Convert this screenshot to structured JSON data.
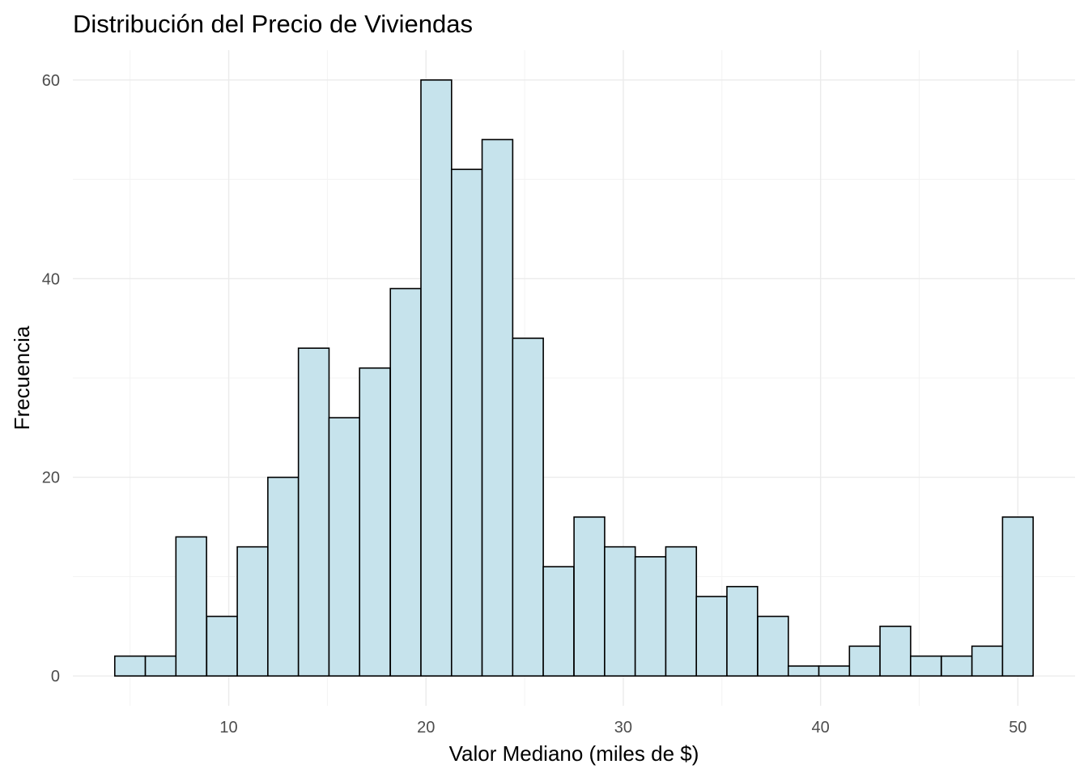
{
  "chart_data": {
    "type": "bar",
    "title": "Distribución del Precio de Viviendas",
    "xlabel": "Valor Mediano (miles de $)",
    "ylabel": "Frecuencia",
    "bin_width": 1.5517,
    "bins": [
      {
        "x": 5.0,
        "count": 2
      },
      {
        "x": 6.55,
        "count": 2
      },
      {
        "x": 8.1,
        "count": 14
      },
      {
        "x": 9.66,
        "count": 6
      },
      {
        "x": 11.21,
        "count": 13
      },
      {
        "x": 12.76,
        "count": 20
      },
      {
        "x": 14.31,
        "count": 33
      },
      {
        "x": 15.86,
        "count": 26
      },
      {
        "x": 17.41,
        "count": 31
      },
      {
        "x": 18.97,
        "count": 39
      },
      {
        "x": 20.52,
        "count": 60
      },
      {
        "x": 22.07,
        "count": 51
      },
      {
        "x": 23.62,
        "count": 54
      },
      {
        "x": 25.17,
        "count": 34
      },
      {
        "x": 26.72,
        "count": 11
      },
      {
        "x": 28.28,
        "count": 16
      },
      {
        "x": 29.83,
        "count": 13
      },
      {
        "x": 31.38,
        "count": 12
      },
      {
        "x": 32.93,
        "count": 13
      },
      {
        "x": 34.48,
        "count": 8
      },
      {
        "x": 36.03,
        "count": 9
      },
      {
        "x": 37.59,
        "count": 6
      },
      {
        "x": 39.14,
        "count": 1
      },
      {
        "x": 40.69,
        "count": 1
      },
      {
        "x": 42.24,
        "count": 3
      },
      {
        "x": 43.79,
        "count": 5
      },
      {
        "x": 45.34,
        "count": 2
      },
      {
        "x": 46.9,
        "count": 2
      },
      {
        "x": 48.45,
        "count": 3
      },
      {
        "x": 50.0,
        "count": 16
      }
    ],
    "xlim": [
      2.1,
      52.9
    ],
    "ylim": [
      -3,
      63
    ],
    "x_ticks": [
      10,
      20,
      30,
      40,
      50
    ],
    "x_tick_labels": [
      "10",
      "20",
      "30",
      "40",
      "50"
    ],
    "y_ticks": [
      0,
      20,
      40,
      60
    ],
    "y_tick_labels": [
      "0",
      "20",
      "40",
      "60"
    ],
    "grid": true,
    "legend": "none",
    "colors": {
      "bar_fill": "#c6e3ec",
      "bar_stroke": "#000000",
      "grid_major": "#ebebeb",
      "grid_minor": "#f3f3f3",
      "tick_text": "#4d4d4d"
    }
  }
}
